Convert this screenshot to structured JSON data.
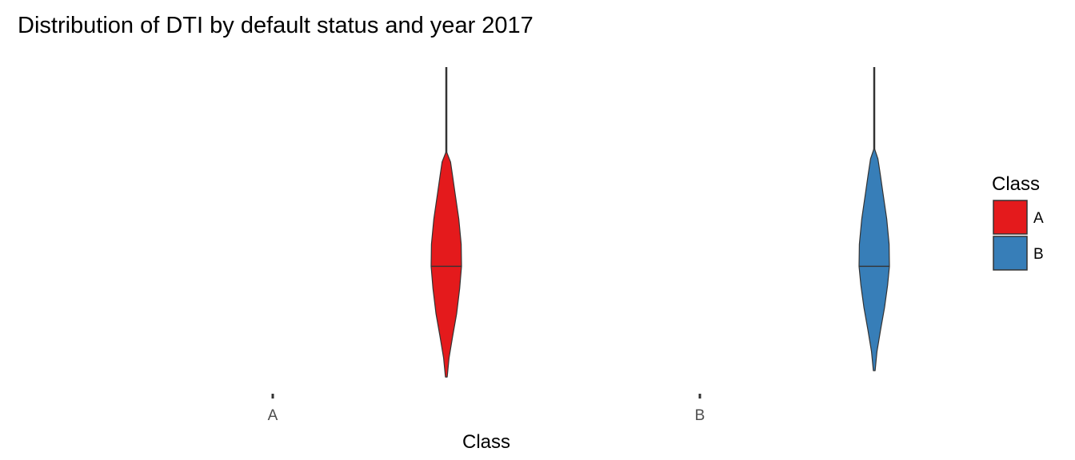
{
  "chart_data": {
    "type": "violin",
    "title": "Distribution of DTI by default status and year 2017",
    "xlabel": "Class",
    "ylabel": "",
    "categories": [
      "A",
      "B"
    ],
    "ylim": [
      0,
      100
    ],
    "grid": false,
    "series": [
      {
        "name": "A",
        "category": "A",
        "color": "#E41A1C",
        "min": 2,
        "max": 100,
        "median": 37,
        "density_y": [
          2,
          8,
          15,
          22,
          30,
          37,
          44,
          52,
          60,
          66,
          70,
          73
        ],
        "density_w": [
          0.06,
          0.18,
          0.42,
          0.68,
          0.88,
          1.0,
          0.98,
          0.82,
          0.58,
          0.4,
          0.28,
          0.03
        ]
      },
      {
        "name": "B",
        "category": "B",
        "color": "#377EB8",
        "min": 4,
        "max": 100,
        "median": 37,
        "density_y": [
          4,
          10,
          17,
          24,
          31,
          37,
          44,
          52,
          60,
          66,
          71,
          74
        ],
        "density_w": [
          0.06,
          0.18,
          0.42,
          0.68,
          0.88,
          1.0,
          0.98,
          0.82,
          0.58,
          0.4,
          0.24,
          0.03
        ]
      }
    ],
    "legend": {
      "title": "Class",
      "placement": "right",
      "entries": [
        {
          "label": "A",
          "color": "#E41A1C"
        },
        {
          "label": "B",
          "color": "#377EB8"
        }
      ]
    }
  }
}
